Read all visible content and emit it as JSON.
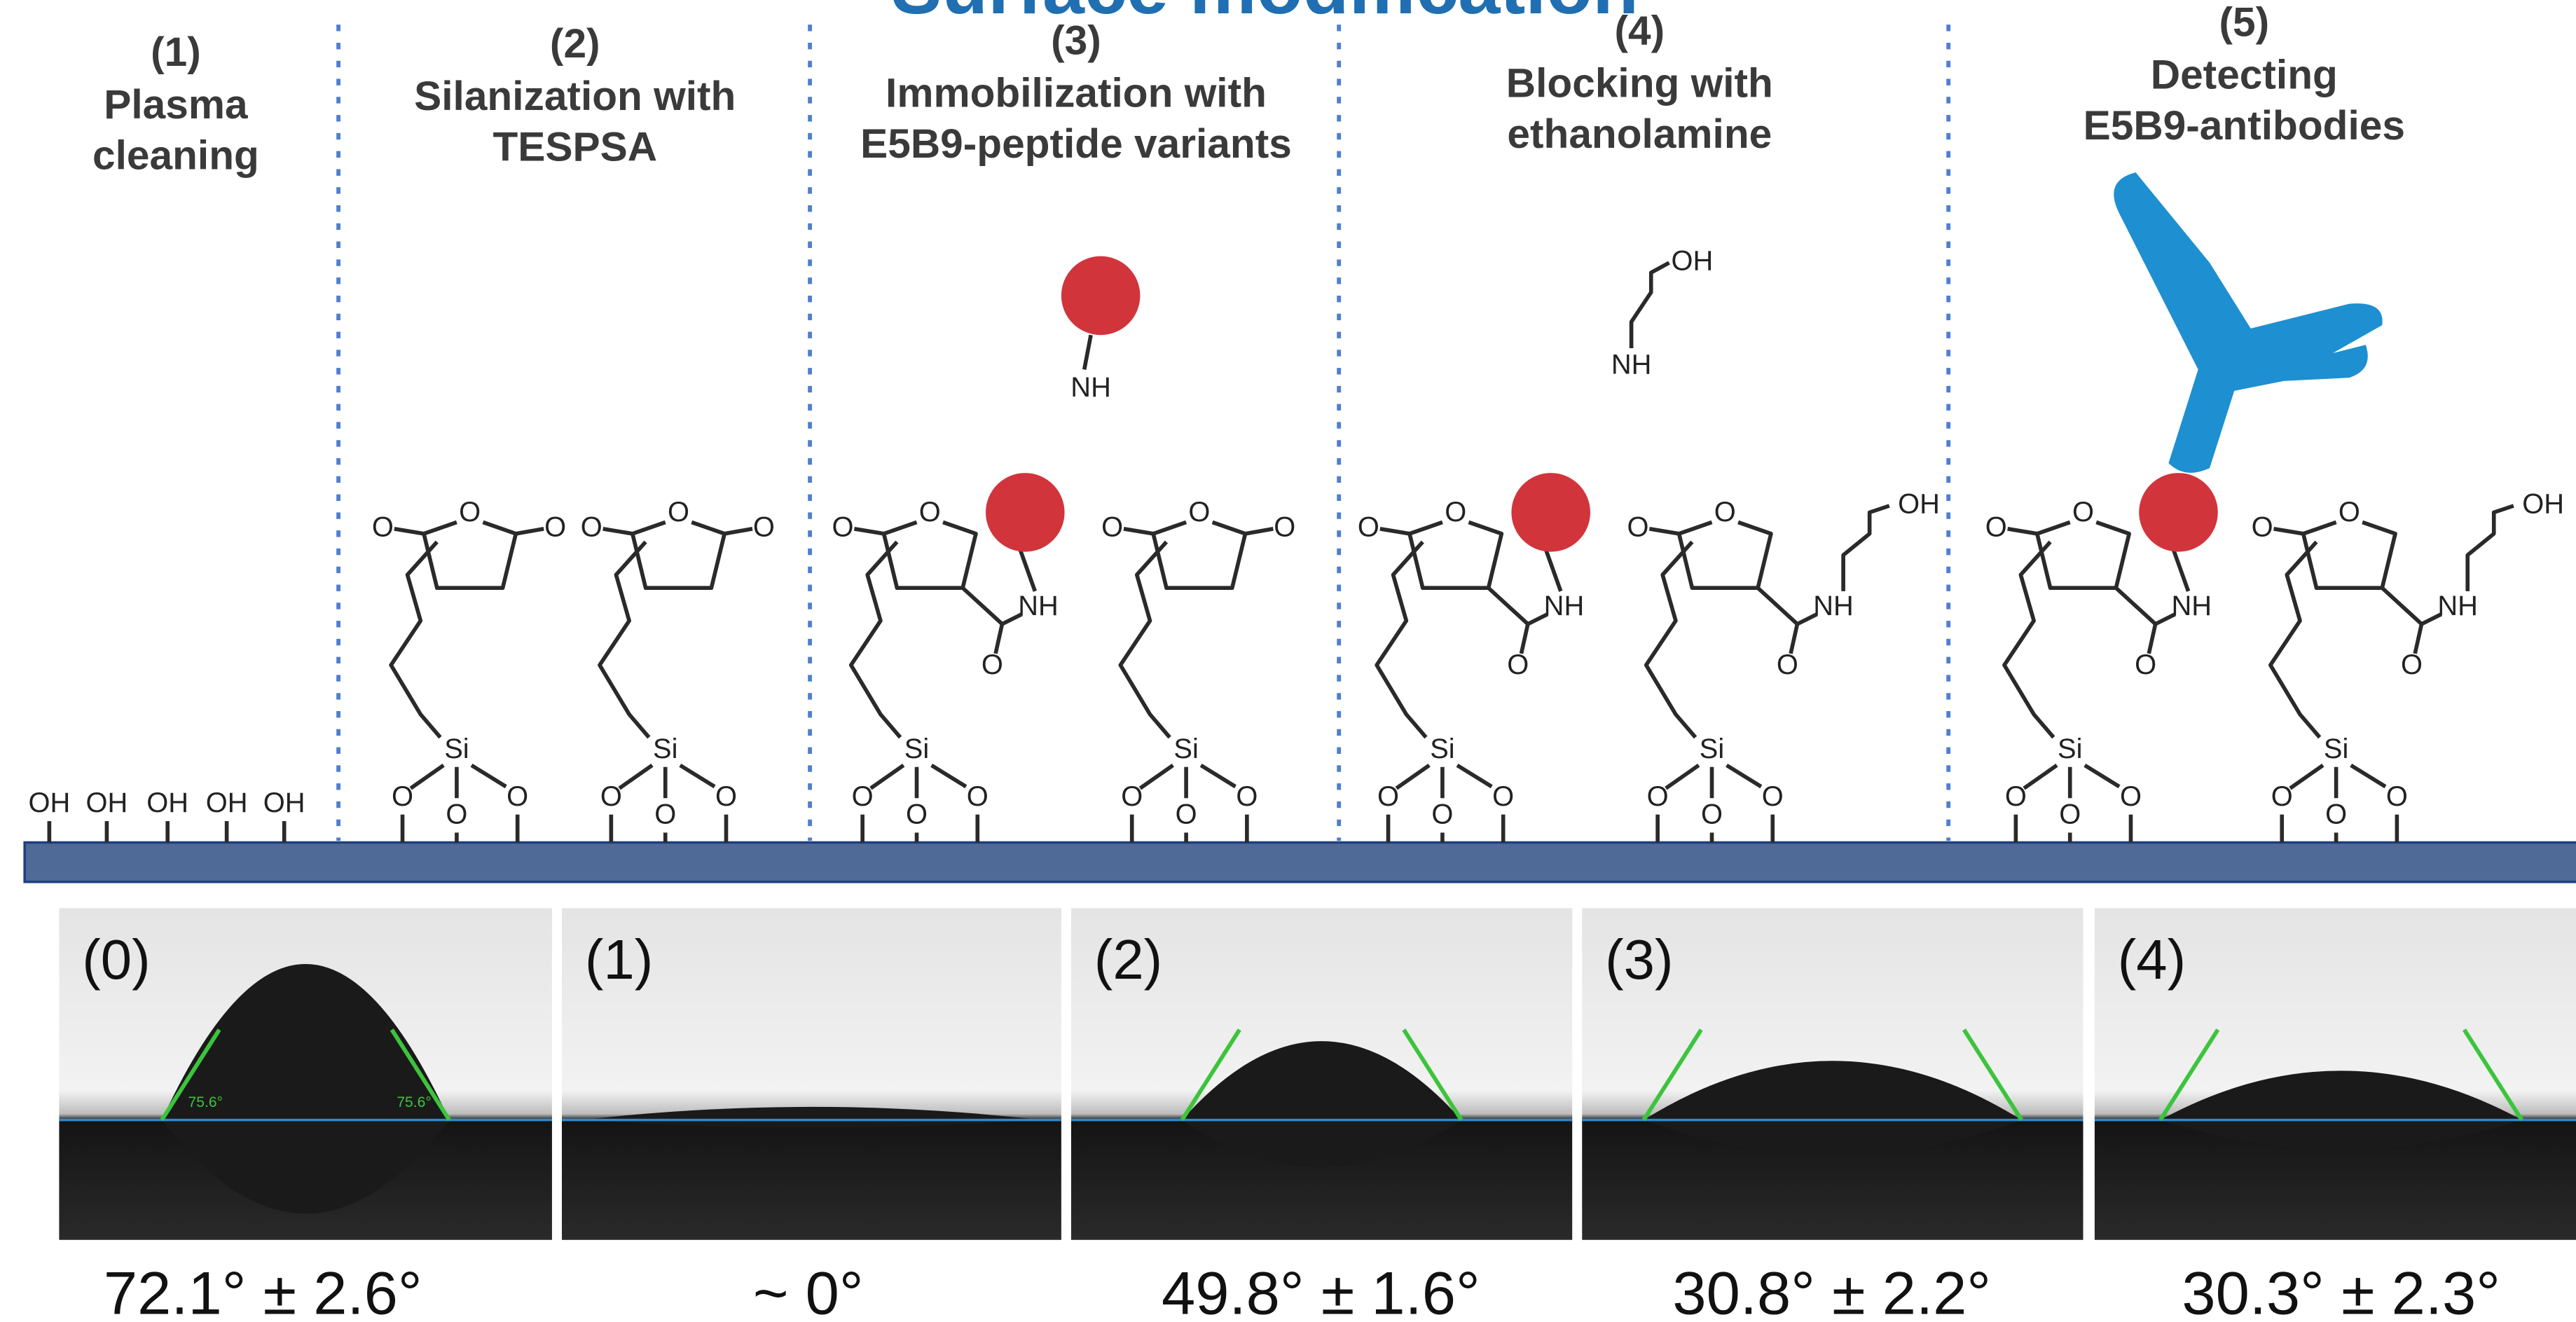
{
  "title": "Surface modification",
  "steps": [
    {
      "number": "(1)",
      "lines": [
        "Plasma",
        "cleaning"
      ]
    },
    {
      "number": "(2)",
      "lines": [
        "Silanization with",
        "TESPSA"
      ]
    },
    {
      "number": "(3)",
      "lines": [
        "Immobilization with",
        "E5B9-peptide variants"
      ]
    },
    {
      "number": "(4)",
      "lines": [
        "Blocking with",
        "ethanolamine"
      ]
    },
    {
      "number": "(5)",
      "lines": [
        "Detecting",
        "E5B9-antibodies"
      ]
    }
  ],
  "chemistry": {
    "hydroxyl": "OH",
    "amine": "NH",
    "oxygen": "O",
    "silicon": "Si"
  },
  "contact_angle_images": [
    {
      "label": "(0)",
      "measured": "75.6°",
      "angle": "72.1° ± 2.6°"
    },
    {
      "label": "(1)",
      "angle": "~ 0°"
    },
    {
      "label": "(2)",
      "angle": "49.8° ± 1.6°"
    },
    {
      "label": "(3)",
      "angle": "30.8° ± 2.2°"
    },
    {
      "label": "(4)",
      "angle": "30.3° ± 2.3°"
    }
  ]
}
